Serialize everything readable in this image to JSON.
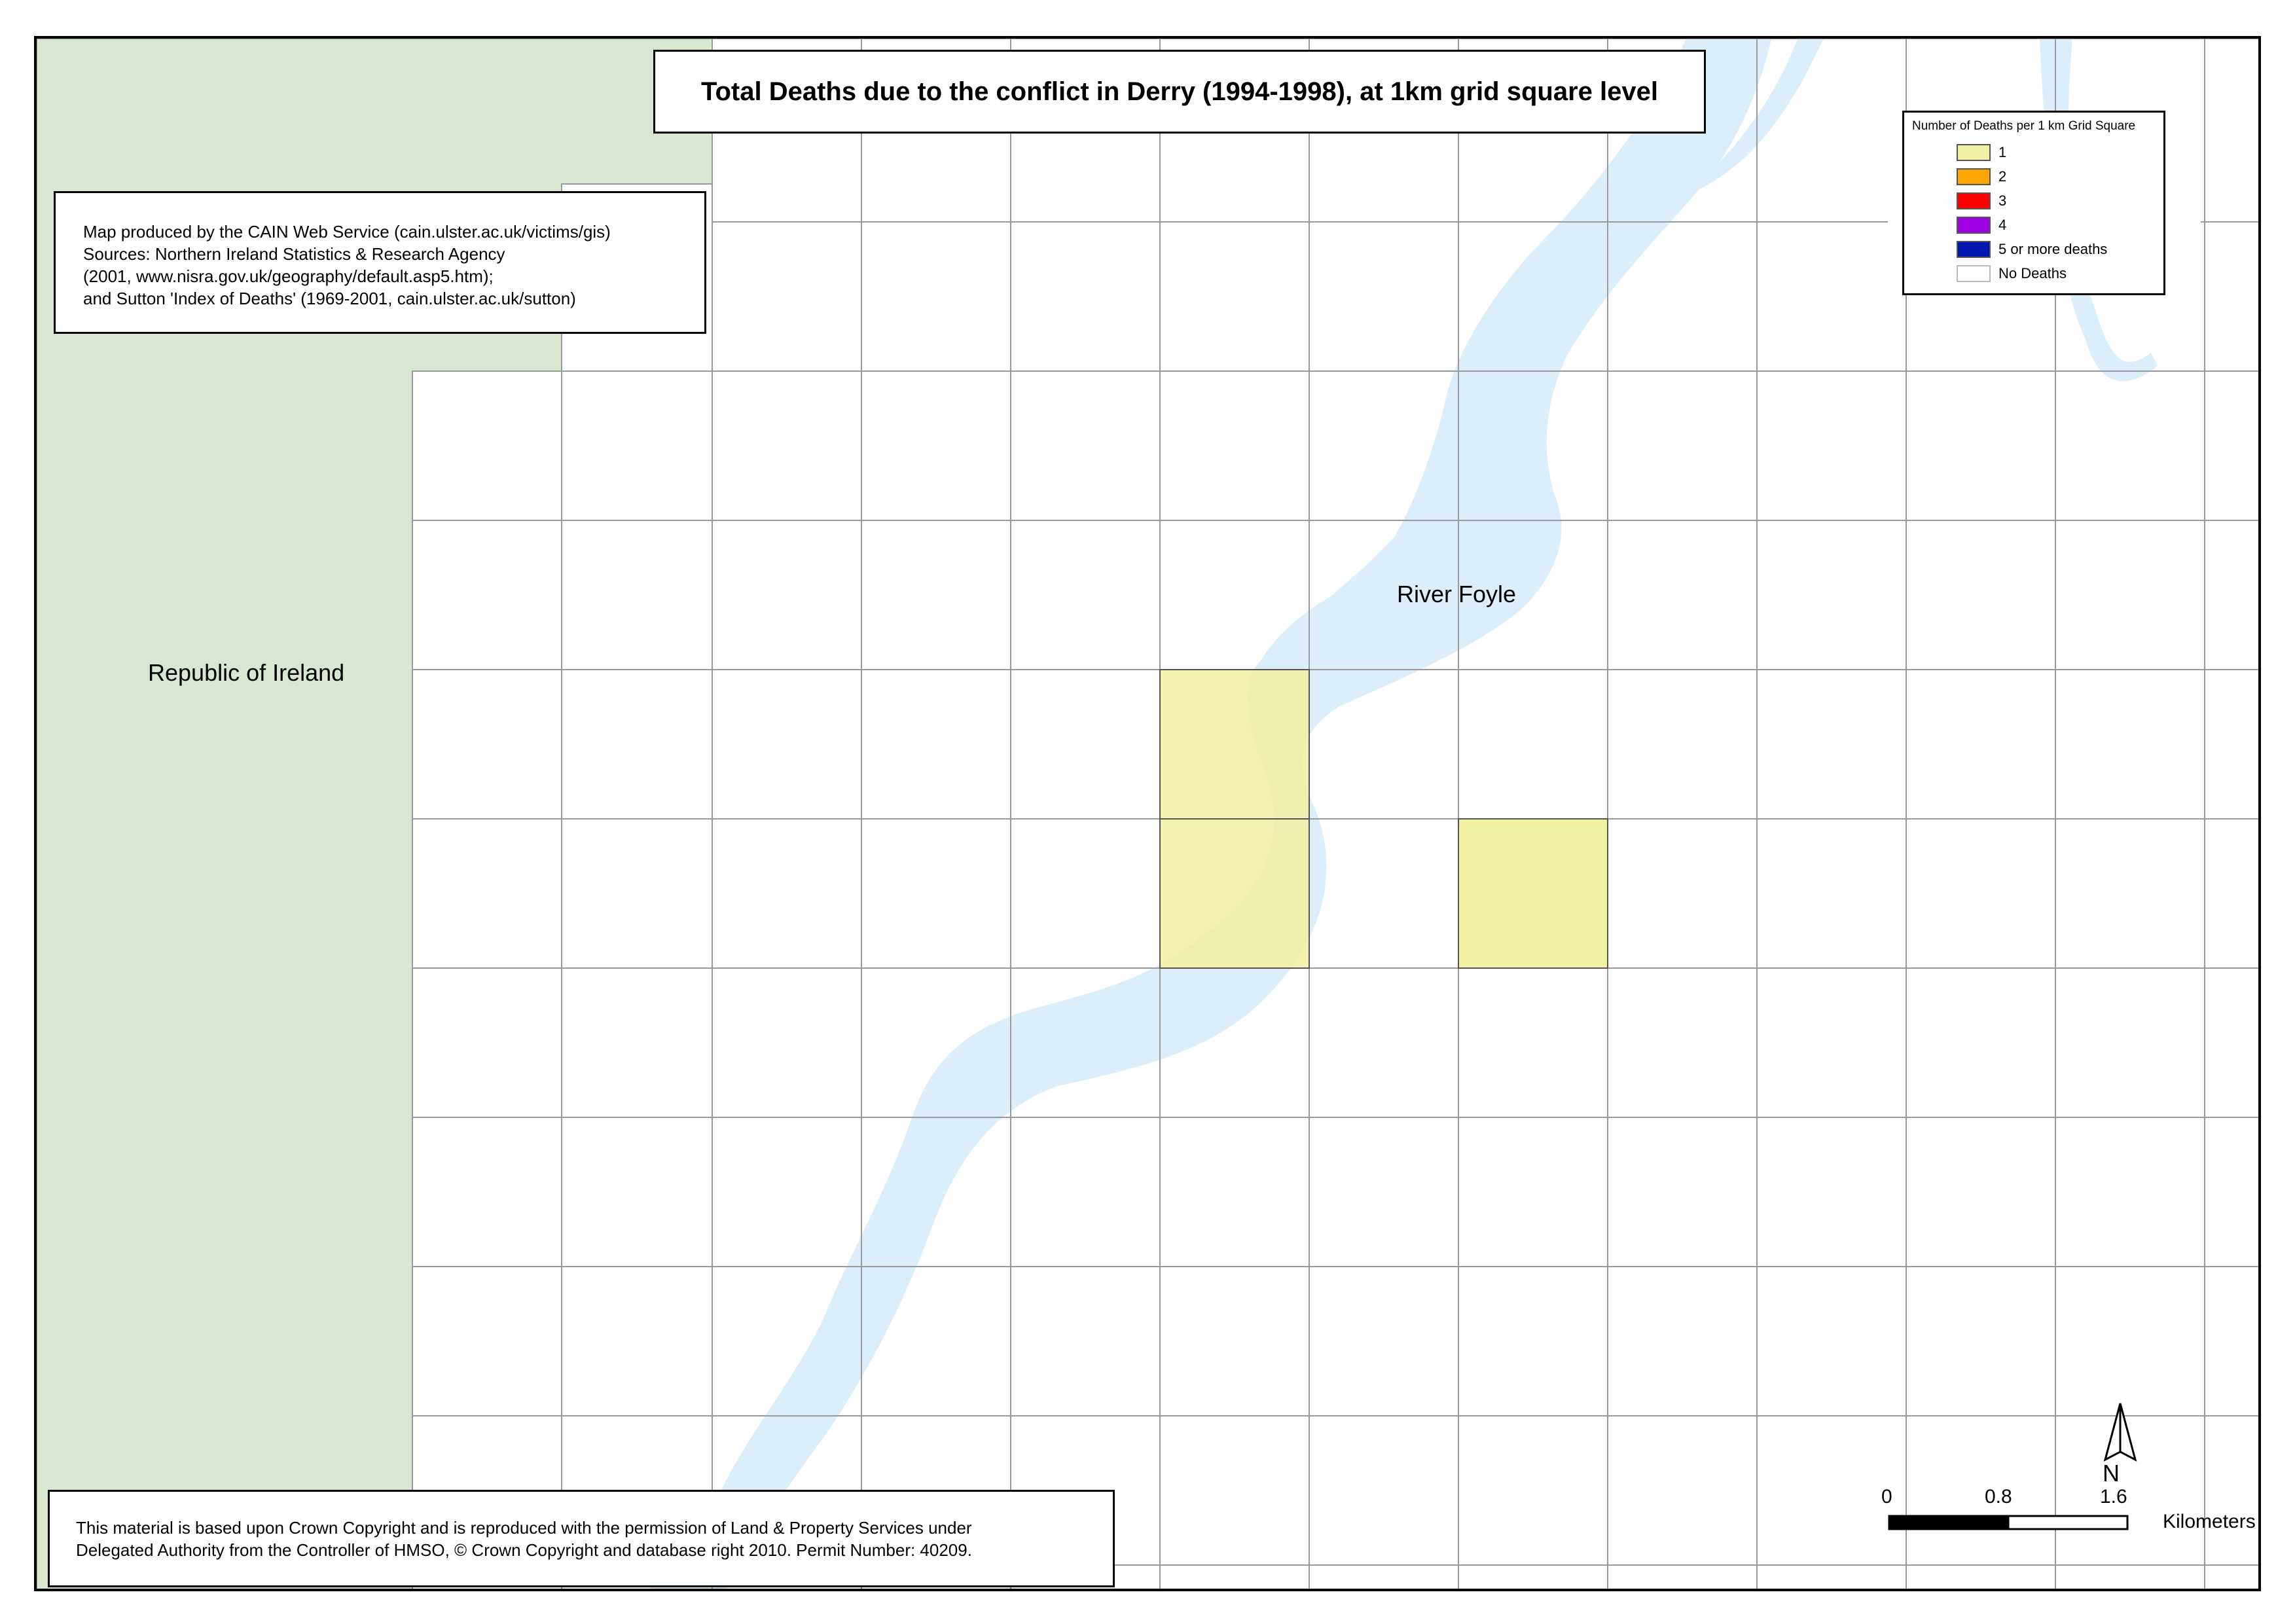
{
  "title": "Total Deaths due to the conflict in Derry (1994-1998), at 1km grid square level",
  "credits": {
    "line1": "Map produced by the CAIN Web Service (cain.ulster.ac.uk/victims/gis)",
    "line2": "Sources: Northern Ireland Statistics & Research Agency",
    "line3": "(2001, www.nisra.gov.uk/geography/default.asp5.htm);",
    "line4": "and Sutton 'Index of Deaths' (1969-2001, cain.ulster.ac.uk/sutton)"
  },
  "copyright": {
    "line1": "This material is based upon Crown Copyright and is reproduced with the permission of Land & Property Services under",
    "line2": "Delegated Authority from the Controller of HMSO, © Crown Copyright and database right 2010. Permit Number: 40209."
  },
  "legend": {
    "title": "Number of Deaths per 1 km Grid Square",
    "items": [
      {
        "label": "1",
        "color": "#F2F0A2"
      },
      {
        "label": "2",
        "color": "#FFA500"
      },
      {
        "label": "3",
        "color": "#FF0000"
      },
      {
        "label": "4",
        "color": "#A100E6"
      },
      {
        "label": "5 or more deaths",
        "color": "#0018B0"
      },
      {
        "label": "No Deaths",
        "color": "#FFFFFF"
      }
    ]
  },
  "labels": {
    "republic": "Republic of Ireland",
    "river": "River Foyle"
  },
  "colors": {
    "republic_fill": "#D9E6D2",
    "river_fill": "#DCEEF9",
    "grid_line": "#9A9A9A",
    "death_1": "#F2F0A2"
  },
  "north_arrow": {
    "letter": "N"
  },
  "scale": {
    "zero": "0",
    "mid": "0.8",
    "max": "1.6",
    "unit": "Kilometers"
  }
}
